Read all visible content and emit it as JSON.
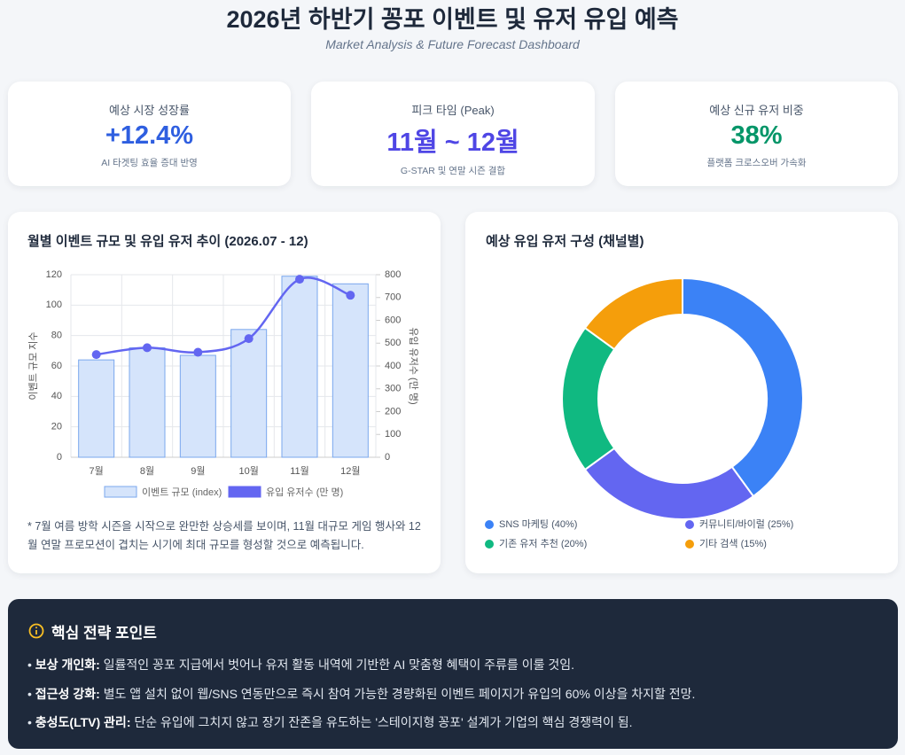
{
  "header": {
    "title": "2026년 하반기 꽁포 이벤트 및 유저 유입 예측",
    "subtitle": "Market Analysis & Future Forecast Dashboard"
  },
  "kpis": [
    {
      "label": "예상 시장 성장률",
      "value": "+12.4%",
      "note": "AI 타겟팅 효율 증대 반영",
      "color": "#2f5fe0"
    },
    {
      "label": "피크 타임 (Peak)",
      "value": "11월 ~ 12월",
      "note": "G-STAR 및 연말 시즌 결합",
      "color": "#4f46e5"
    },
    {
      "label": "예상 신규 유저 비중",
      "value": "38%",
      "note": "플랫폼 크로스오버 가속화",
      "color": "#059669"
    }
  ],
  "chart_data": [
    {
      "type": "bar",
      "title": "월별 이벤트 규모 및 유입 유저 추이 (2026.07 - 12)",
      "categories": [
        "7월",
        "8월",
        "9월",
        "10월",
        "11월",
        "12월"
      ],
      "series": [
        {
          "name": "이벤트 규모 (index)",
          "type": "bar",
          "color": "#d5e4fb",
          "values": [
            64,
            72,
            67,
            84,
            119,
            114
          ]
        },
        {
          "name": "유입 유저수 (만 명)",
          "type": "line",
          "color": "#6366f1",
          "axis": "y2",
          "values": [
            450,
            480,
            460,
            520,
            780,
            710
          ]
        }
      ],
      "ylabel": "이벤트 규모 지수",
      "y2label": "유입 유저수 (만 명)",
      "ylim": [
        0,
        120
      ],
      "yticks": [
        0,
        20,
        40,
        60,
        80,
        100,
        120
      ],
      "y2lim": [
        0,
        800
      ],
      "y2ticks": [
        0,
        100,
        200,
        300,
        400,
        500,
        600,
        700,
        800
      ],
      "grid": true,
      "legend": "bottom",
      "note": "* 7월 여름 방학 시즌을 시작으로 완만한 상승세를 보이며, 11월 대규모 게임 행사와 12월 연말 프로모션이 겹치는 시기에 최대 규모를 형성할 것으로 예측됩니다."
    },
    {
      "type": "doughnut",
      "title": "예상 유입 유저 구성 (채널별)",
      "categories": [
        "SNS 마케팅 (40%)",
        "커뮤니티/바이럴 (25%)",
        "기존 유저 추천 (20%)",
        "기타 검색 (15%)"
      ],
      "values": [
        40,
        25,
        20,
        15
      ],
      "colors": [
        "#3b82f6",
        "#6366f1",
        "#10b981",
        "#f59e0b"
      ],
      "legend": "bottom"
    }
  ],
  "strategy": {
    "title": "핵심 전략 포인트",
    "items": [
      {
        "label": "보상 개인화:",
        "text": "일률적인 꽁포 지급에서 벗어나 유저 활동 내역에 기반한 AI 맞춤형 혜택이 주류를 이룰 것임."
      },
      {
        "label": "접근성 강화:",
        "text": "별도 앱 설치 없이 웹/SNS 연동만으로 즉시 참여 가능한 경량화된 이벤트 페이지가 유입의 60% 이상을 차지할 전망."
      },
      {
        "label": "충성도(LTV) 관리:",
        "text": "단순 유입에 그치지 않고 장기 잔존을 유도하는 '스테이지형 꽁포' 설계가 기업의 핵심 경쟁력이 됨."
      }
    ]
  }
}
